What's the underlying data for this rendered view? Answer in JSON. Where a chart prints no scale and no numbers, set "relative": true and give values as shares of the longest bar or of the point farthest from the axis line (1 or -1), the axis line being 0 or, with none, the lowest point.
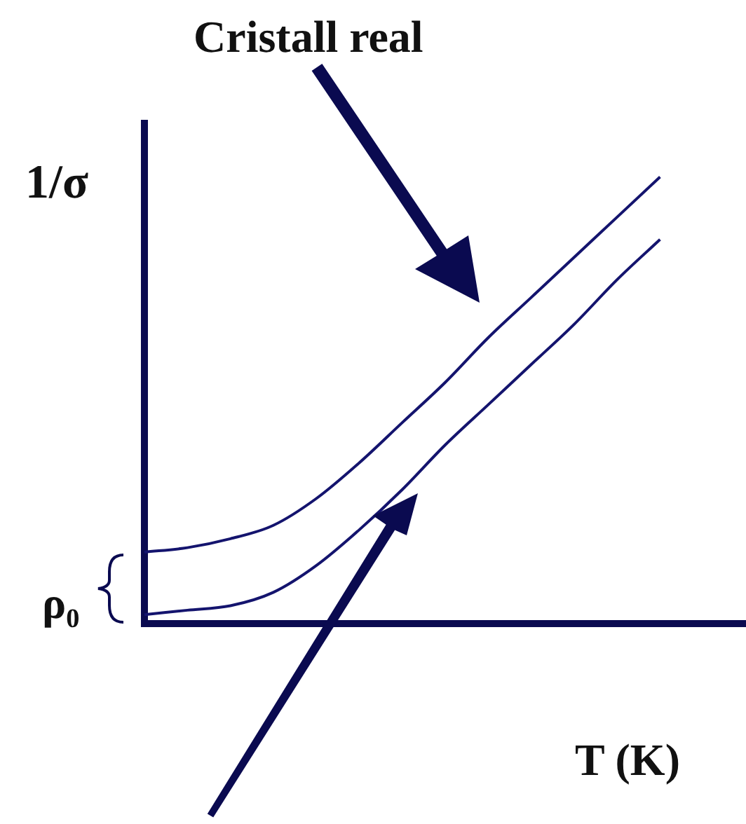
{
  "chart_data": {
    "type": "line",
    "relative": true,
    "xlabel": "T (K)",
    "ylabel": "1/σ",
    "categories": [
      null,
      null,
      null,
      null,
      null,
      null,
      null,
      null,
      null,
      null,
      null,
      null,
      null,
      null,
      null
    ],
    "series": [
      {
        "color": "#14146e",
        "values": [
          0.16,
          0.17,
          0.19,
          0.22,
          0.28,
          0.36,
          0.45,
          0.54,
          0.64,
          0.73,
          0.82,
          0.91,
          1.0,
          null,
          null
        ]
      },
      {
        "color": "#14146e",
        "values": [
          0.02,
          0.03,
          0.04,
          0.07,
          0.13,
          0.21,
          0.3,
          0.4,
          0.49,
          0.58,
          0.67,
          0.77,
          0.86,
          null,
          null
        ]
      }
    ],
    "annotations": [
      "Cristall real",
      "ρ₀"
    ],
    "marker": "none",
    "line_style": "solid",
    "grid": false,
    "legend": false
  }
}
